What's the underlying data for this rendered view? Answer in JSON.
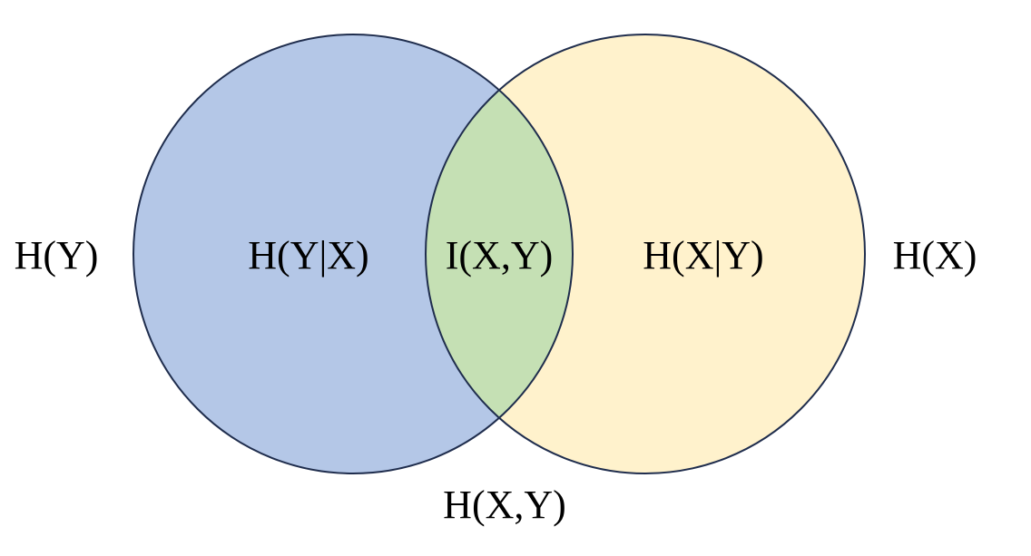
{
  "colors": {
    "left_circle_fill": "#b4c7e7",
    "right_circle_fill": "#fff2cc",
    "intersection_fill": "#c5e0b4",
    "outline": "#1f2d4d",
    "background": "#ffffff"
  },
  "labels": {
    "left_outer": "H(Y)",
    "left_only": "H(Y|X)",
    "intersection": "I(X,Y)",
    "right_only": "H(X|Y)",
    "right_outer": "H(X)",
    "union": "H(X,Y)"
  }
}
